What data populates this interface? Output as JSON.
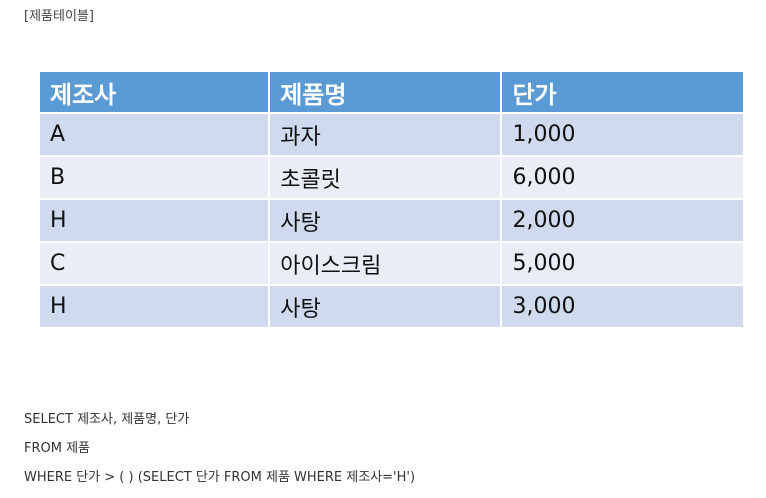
{
  "caption": "[제품테이블]",
  "table": {
    "headers": [
      "제조사",
      "제품명",
      "단가"
    ],
    "rows": [
      [
        "A",
        "과자",
        "1,000"
      ],
      [
        "B",
        "초콜릿",
        "6,000"
      ],
      [
        "H",
        "사탕",
        "2,000"
      ],
      [
        "C",
        "아이스크림",
        "5,000"
      ],
      [
        "H",
        "사탕",
        "3,000"
      ]
    ]
  },
  "query": {
    "lines": [
      "SELECT 제조사, 제품명, 단가",
      "FROM 제품",
      "WHERE 단가 > ( ) (SELECT 단가 FROM 제품 WHERE 제조사='H')"
    ]
  },
  "colors": {
    "header_bg": "#5b9bd5",
    "row_odd_bg": "#cfdaee",
    "row_even_bg": "#e8edf6"
  }
}
